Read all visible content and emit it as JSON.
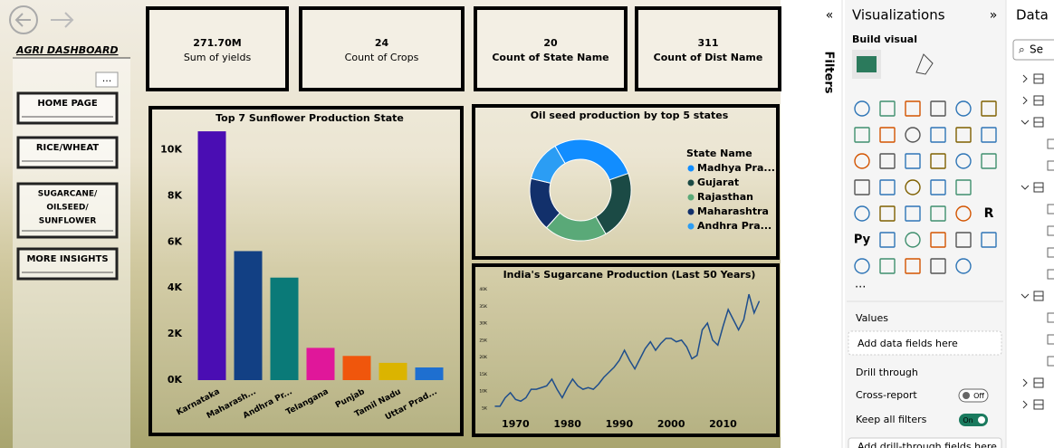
{
  "nav": {
    "title": "AGRI DASHBOARD",
    "more": "...",
    "buttons": [
      [
        "HOME PAGE"
      ],
      [
        "RICE/WHEAT"
      ],
      [
        "SUGARCANE/",
        "OILSEED/",
        "SUNFLOWER"
      ],
      [
        "MORE INSIGHTS"
      ]
    ]
  },
  "cards": [
    {
      "value": "271.70M",
      "label": "Sum of yields"
    },
    {
      "value": "24",
      "label": "Count of Crops"
    },
    {
      "value": "20",
      "label": "Count of State Name"
    },
    {
      "value": "311",
      "label": "Count of Dist Name"
    }
  ],
  "chart_data": [
    {
      "type": "bar",
      "title": "Top 7 Sunflower Production State",
      "categories": [
        "Karnataka",
        "Maharash...",
        "Andhra Pr...",
        "Telangana",
        "Punjab",
        "Tamil Nadu",
        "Uttar Prad..."
      ],
      "values": [
        10800,
        5600,
        4450,
        1400,
        1050,
        750,
        550
      ],
      "colors": [
        "#4a0db3",
        "#124084",
        "#0a7a78",
        "#e0179a",
        "#f0560c",
        "#dbb400",
        "#1e6fd0"
      ],
      "ylim": [
        0,
        11000
      ],
      "yticks": [
        {
          "value": 0,
          "label": "0K"
        },
        {
          "value": 2000,
          "label": "2K"
        },
        {
          "value": 4000,
          "label": "4K"
        },
        {
          "value": 6000,
          "label": "6K"
        },
        {
          "value": 8000,
          "label": "8K"
        },
        {
          "value": 10000,
          "label": "10K"
        }
      ]
    },
    {
      "type": "donut",
      "title": "Oil seed production by top 5 states",
      "legend_title": "State Name",
      "categories": [
        "Madhya Pra...",
        "Gujarat",
        "Rajasthan",
        "Maharashtra",
        "Andhra Pra..."
      ],
      "values": [
        28,
        22,
        20,
        17,
        13
      ],
      "colors": [
        "#118dff",
        "#1b4a45",
        "#5aa978",
        "#12306b",
        "#2b9df4"
      ]
    },
    {
      "type": "line",
      "title": "India's Sugarcane Production (Last 50 Years)",
      "x": [
        1966,
        1967,
        1968,
        1969,
        1970,
        1971,
        1972,
        1973,
        1974,
        1975,
        1976,
        1977,
        1978,
        1979,
        1980,
        1981,
        1982,
        1983,
        1984,
        1985,
        1986,
        1987,
        1988,
        1989,
        1990,
        1991,
        1992,
        1993,
        1994,
        1995,
        1996,
        1997,
        1998,
        1999,
        2000,
        2001,
        2002,
        2003,
        2004,
        2005,
        2006,
        2007,
        2008,
        2009,
        2010,
        2011,
        2012,
        2013,
        2014,
        2015,
        2016,
        2017
      ],
      "series": [
        {
          "color": "#1f4e8c",
          "values": [
            5500,
            5500,
            8000,
            9500,
            7500,
            7000,
            8000,
            10500,
            10500,
            11000,
            11500,
            13500,
            10500,
            8000,
            11000,
            13500,
            11500,
            10500,
            11000,
            10500,
            12000,
            14000,
            15500,
            17000,
            19000,
            22000,
            19000,
            16500,
            19500,
            22500,
            24500,
            22000,
            24000,
            25500,
            25500,
            24500,
            25000,
            23000,
            19500,
            20500,
            28000,
            30000,
            25000,
            23500,
            29000,
            34000,
            31000,
            28000,
            31000,
            38500,
            33000,
            36500
          ]
        }
      ],
      "xlim": [
        1964,
        2019
      ],
      "xticks": [
        1970,
        1980,
        1990,
        2000,
        2010
      ],
      "ylim": [
        2000,
        42000
      ],
      "yticks": [
        {
          "value": 5000,
          "label": "5K"
        },
        {
          "value": 10000,
          "label": "10K"
        },
        {
          "value": 15000,
          "label": "15K"
        },
        {
          "value": 20000,
          "label": "20K"
        },
        {
          "value": 25000,
          "label": "25K"
        },
        {
          "value": 30000,
          "label": "30K"
        },
        {
          "value": 35000,
          "label": "35K"
        },
        {
          "value": 40000,
          "label": "40K"
        }
      ]
    }
  ],
  "filters_pane": {
    "title": "Filters"
  },
  "visualizations_pane": {
    "title": "Visualizations",
    "build_visual": "Build visual",
    "r_icon": "R",
    "py_icon": "Py",
    "more": "...",
    "values_label": "Values",
    "values_placeholder": "Add data fields here",
    "drill_through": "Drill through",
    "cross_report": "Cross-report",
    "cross_report_state": "Off",
    "keep_all_filters": "Keep all filters",
    "keep_state": "On",
    "drill_placeholder": "Add drill-through fields here"
  },
  "data_pane": {
    "title": "Data",
    "search": "Se"
  }
}
